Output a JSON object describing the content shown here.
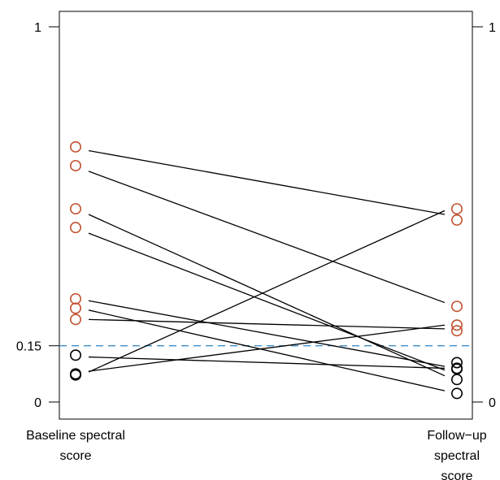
{
  "chart_data": {
    "type": "slope",
    "x_labels": {
      "left": "Baseline spectral score",
      "right_lines": [
        "Follow−up",
        "spectral",
        "score"
      ]
    },
    "ylim": [
      0,
      1
    ],
    "y_ticks": [
      {
        "value": 0,
        "label": "0"
      },
      {
        "value": 0.15,
        "label": "0.15"
      },
      {
        "value": 1,
        "label": "1"
      }
    ],
    "right_ticks": [
      {
        "value": 0,
        "label": "0"
      },
      {
        "value": 1,
        "label": "1"
      }
    ],
    "threshold": {
      "value": 0.15,
      "color": "#3f8fc9"
    },
    "colors": {
      "above_threshold": "#c0502e",
      "below_threshold": "#000000",
      "line": "#000000"
    },
    "baseline_points": [
      0.68,
      0.63,
      0.515,
      0.465,
      0.275,
      0.25,
      0.22,
      0.125,
      0.075,
      0.072
    ],
    "followup_points": [
      0.515,
      0.485,
      0.255,
      0.205,
      0.19,
      0.105,
      0.09,
      0.088,
      0.06,
      0.023
    ],
    "pairs": [
      {
        "baseline": 0.67,
        "followup": 0.5
      },
      {
        "baseline": 0.615,
        "followup": 0.265
      },
      {
        "baseline": 0.5,
        "followup": 0.07
      },
      {
        "baseline": 0.45,
        "followup": 0.085
      },
      {
        "baseline": 0.27,
        "followup": 0.095
      },
      {
        "baseline": 0.245,
        "followup": 0.03
      },
      {
        "baseline": 0.22,
        "followup": 0.195
      },
      {
        "baseline": 0.12,
        "followup": 0.09
      },
      {
        "baseline": 0.08,
        "followup": 0.51
      },
      {
        "baseline": 0.082,
        "followup": 0.205
      }
    ]
  }
}
